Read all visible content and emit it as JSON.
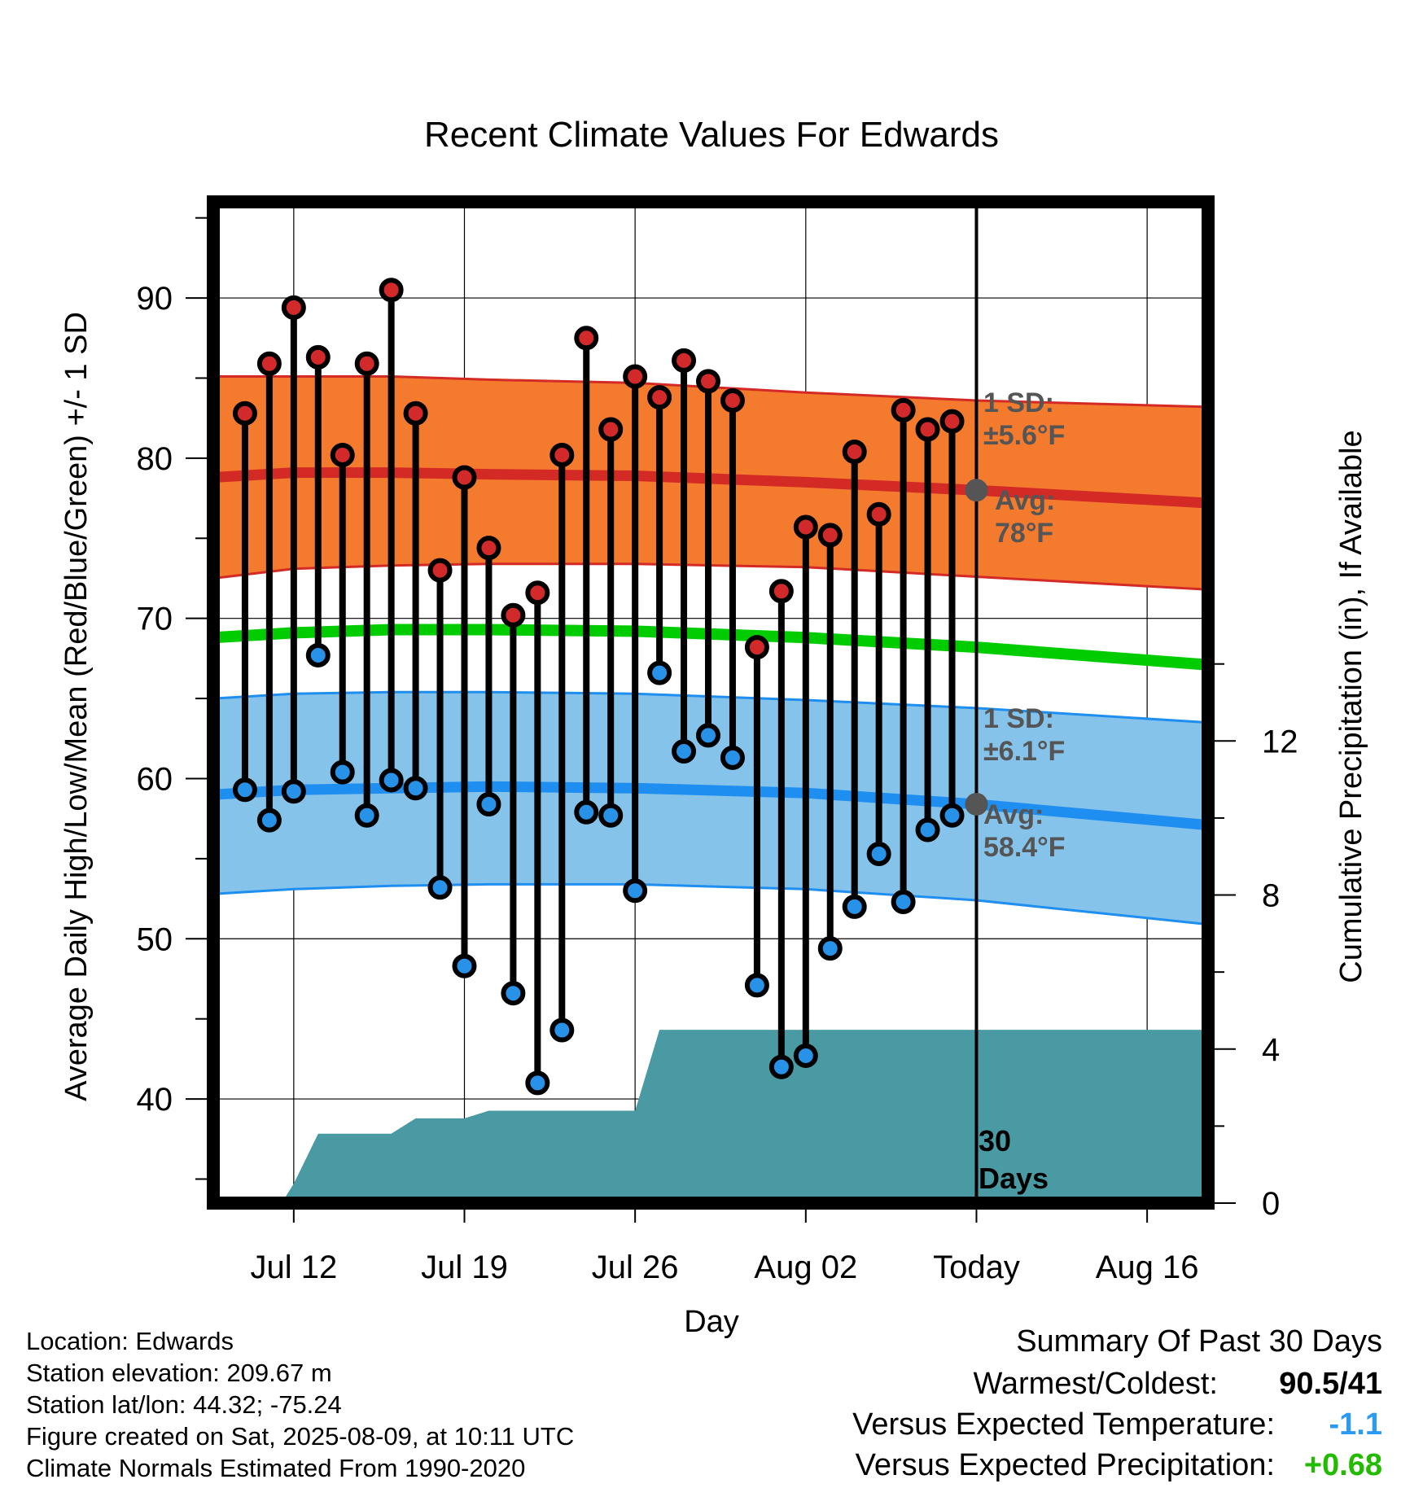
{
  "chart_data": {
    "type": "line",
    "title": "Recent Climate Values For Edwards",
    "xlabel": "Day",
    "ylabel": "Average Daily High/Low/Mean (Red/Blue/Green) +/- 1 SD",
    "y2label": "Cumulative Precipitation (in), If Available",
    "ylim": [
      33.5,
      96
    ],
    "y2lim": [
      0,
      26
    ],
    "x_ticks": [
      {
        "day": 12,
        "label": "Jul 12"
      },
      {
        "day": 19,
        "label": "Jul 19"
      },
      {
        "day": 26,
        "label": "Jul 26"
      },
      {
        "day": 33,
        "label": "Aug 02"
      },
      {
        "day": 40,
        "label": "Today"
      },
      {
        "day": 47,
        "label": "Aug 16"
      }
    ],
    "y_ticks": [
      "40",
      "50",
      "60",
      "70",
      "80",
      "90"
    ],
    "y2_ticks": [
      "0",
      "4",
      "8",
      "12"
    ],
    "grid": true,
    "xlim": [
      8.7,
      49.5
    ],
    "today_day": 40,
    "days_label": [
      "30",
      "Days"
    ],
    "days": [
      10,
      11,
      12,
      13,
      14,
      15,
      16,
      17,
      18,
      19,
      20,
      21,
      22,
      23,
      24,
      25,
      26,
      27,
      28,
      29,
      30,
      31,
      32,
      33,
      34,
      35,
      36,
      37,
      38,
      39
    ],
    "daily_high": [
      82.8,
      85.9,
      89.4,
      86.3,
      80.2,
      85.9,
      90.5,
      82.8,
      73.0,
      78.8,
      74.4,
      70.2,
      71.6,
      80.2,
      87.5,
      81.8,
      85.1,
      83.8,
      86.1,
      84.8,
      83.6,
      68.2,
      71.7,
      75.7,
      75.2,
      80.4,
      76.5,
      83.0,
      81.8,
      82.3
    ],
    "daily_low": [
      59.3,
      57.4,
      59.2,
      67.7,
      60.4,
      57.7,
      59.9,
      59.4,
      53.2,
      48.3,
      58.4,
      46.6,
      41.0,
      44.3,
      57.9,
      57.7,
      53.0,
      66.6,
      61.7,
      62.7,
      61.3,
      47.1,
      42.0,
      42.7,
      49.4,
      52.0,
      55.3,
      52.3,
      56.8,
      57.7
    ],
    "normal_high": {
      "day": [
        8.7,
        12,
        16,
        20,
        26,
        33,
        40,
        49.5
      ],
      "mean": [
        78.8,
        79.1,
        79.1,
        79.0,
        78.9,
        78.5,
        78.0,
        77.2
      ],
      "upper": [
        85.1,
        85.1,
        85.1,
        84.9,
        84.7,
        84.1,
        83.6,
        83.2
      ],
      "lower": [
        72.5,
        73.1,
        73.3,
        73.4,
        73.4,
        73.2,
        72.6,
        71.8
      ]
    },
    "normal_low": {
      "day": [
        8.7,
        12,
        16,
        20,
        26,
        33,
        40,
        49.5
      ],
      "mean": [
        59.0,
        59.3,
        59.4,
        59.5,
        59.4,
        59.1,
        58.4,
        57.1
      ],
      "upper": [
        65.0,
        65.3,
        65.4,
        65.4,
        65.3,
        64.9,
        64.4,
        63.5
      ],
      "lower": [
        52.8,
        53.1,
        53.3,
        53.4,
        53.4,
        53.1,
        52.4,
        50.9
      ]
    },
    "normal_mean": {
      "day": [
        8.7,
        12,
        16,
        20,
        26,
        33,
        40,
        49.5
      ],
      "mean": [
        68.8,
        69.1,
        69.3,
        69.3,
        69.2,
        68.8,
        68.2,
        67.1
      ]
    },
    "precip_cumulative": {
      "day": [
        11.5,
        12,
        13,
        16,
        17,
        18,
        19,
        20,
        21,
        25,
        26,
        27,
        33,
        49.5
      ],
      "value": [
        0.0,
        0.5,
        1.8,
        1.8,
        2.2,
        2.2,
        2.2,
        2.4,
        2.4,
        2.4,
        2.4,
        4.5,
        4.5,
        4.5
      ]
    },
    "annotations": {
      "high_sd": [
        "1 SD:",
        "±5.6°F"
      ],
      "high_avg": [
        "Avg:",
        "78°F"
      ],
      "low_sd": [
        "1 SD:",
        "±6.1°F"
      ],
      "low_avg": [
        "Avg:",
        "58.4°F"
      ],
      "high_avg_value": 78.0,
      "low_avg_value": 58.4
    },
    "colors": {
      "high_band": "#f47a2e",
      "high_line": "#d42a26",
      "low_band": "#86c3ea",
      "low_line": "#1e8ff0",
      "mean_line": "#00cc00",
      "precip": "#4a9aa3",
      "high_marker": "#d22a2a",
      "low_marker": "#2792e8"
    }
  },
  "footer": {
    "location": "Location: Edwards",
    "elevation": "Station elevation: 209.67 m",
    "latlon": "Station lat/lon: 44.32; -75.24",
    "created": "Figure created on Sat, 2025-08-09, at 10:11 UTC",
    "normals": "Climate Normals Estimated From 1990-2020"
  },
  "summary": {
    "title": "Summary Of Past 30 Days",
    "warm_cold_label": "Warmest/Coldest:",
    "warm_cold_value": "90.5/41",
    "temp_label": "Versus Expected Temperature:",
    "temp_value": "-1.1",
    "temp_color": "#2a9bf0",
    "precip_label": "Versus Expected Precipitation:",
    "precip_value": "+0.68",
    "precip_color": "#22bb00"
  }
}
